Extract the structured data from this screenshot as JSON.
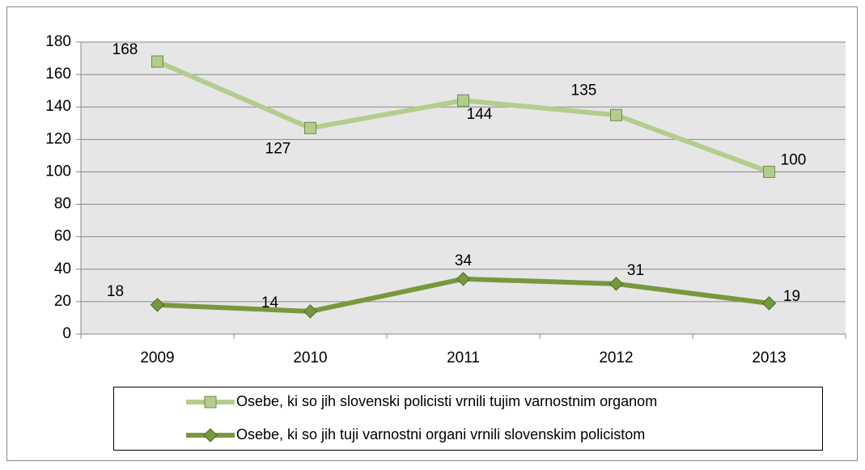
{
  "chart_data": {
    "type": "line",
    "categories": [
      "2009",
      "2010",
      "2011",
      "2012",
      "2013"
    ],
    "series": [
      {
        "name": "Osebe, ki so jih slovenski policisti vrnili tujim varnostnim organom",
        "color": "#b3cd8e",
        "marker": "square",
        "values": [
          168,
          127,
          144,
          135,
          100
        ]
      },
      {
        "name": "Osebe, ki so jih tuji varnostni organi vrnili slovenskim policistom",
        "color": "#77983f",
        "marker": "diamond",
        "values": [
          18,
          14,
          34,
          31,
          19
        ]
      }
    ],
    "ylim": [
      0,
      180
    ],
    "yticks": [
      0,
      20,
      40,
      60,
      80,
      100,
      120,
      140,
      160,
      180
    ],
    "grid": true,
    "legend": "bottom"
  }
}
